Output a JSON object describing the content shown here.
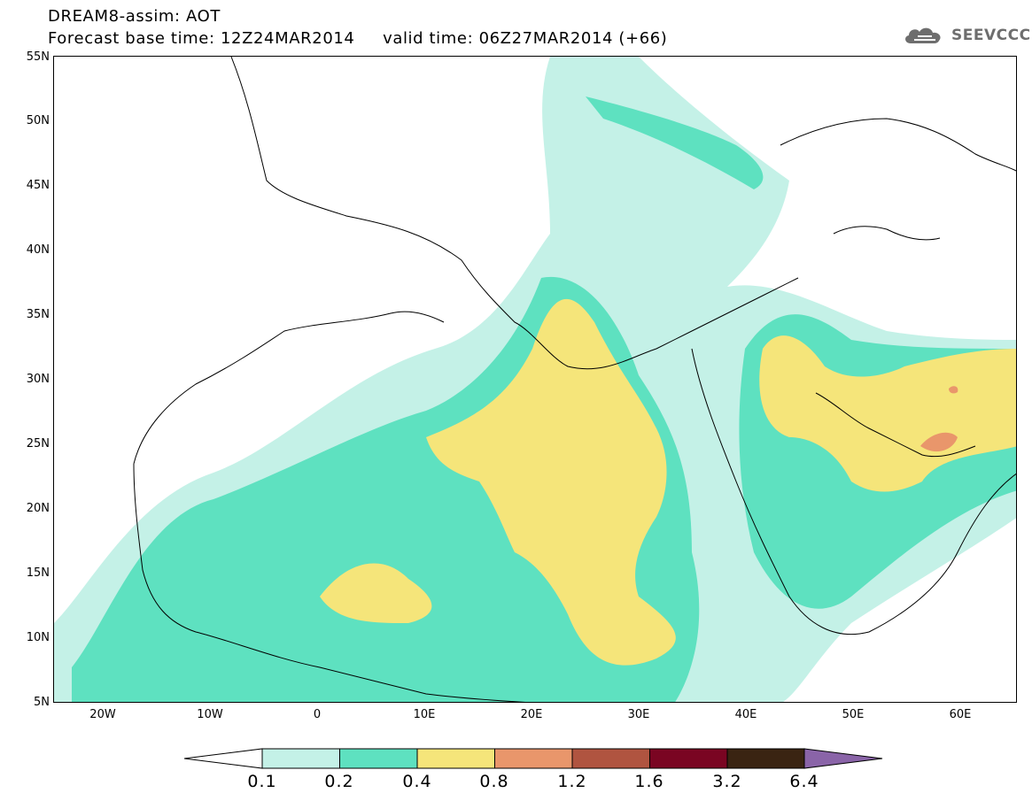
{
  "header": {
    "title_line_1": "DREAM8-assim: AOT",
    "title_line_2": "Forecast base time: 12Z24MAR2014     valid time: 06Z27MAR2014 (+66)"
  },
  "brand": {
    "name": "SEEVCCC",
    "icon": "cloud-logo-icon"
  },
  "map": {
    "lat_labels": [
      "55N",
      "50N",
      "45N",
      "40N",
      "35N",
      "30N",
      "25N",
      "20N",
      "15N",
      "10N",
      "5N"
    ],
    "lon_labels": [
      "20W",
      "10W",
      "0",
      "10E",
      "20E",
      "30E",
      "40E",
      "50E",
      "60E"
    ]
  },
  "colorbar": {
    "labels": [
      "0.1",
      "0.2",
      "0.4",
      "0.8",
      "1.2",
      "1.6",
      "3.2",
      "6.4"
    ],
    "colors": [
      "#c4f1e7",
      "#5ee1c0",
      "#f5e57a",
      "#e9966b",
      "#b05440",
      "#7a0522",
      "#3a2412",
      "#8a64a8"
    ]
  }
}
